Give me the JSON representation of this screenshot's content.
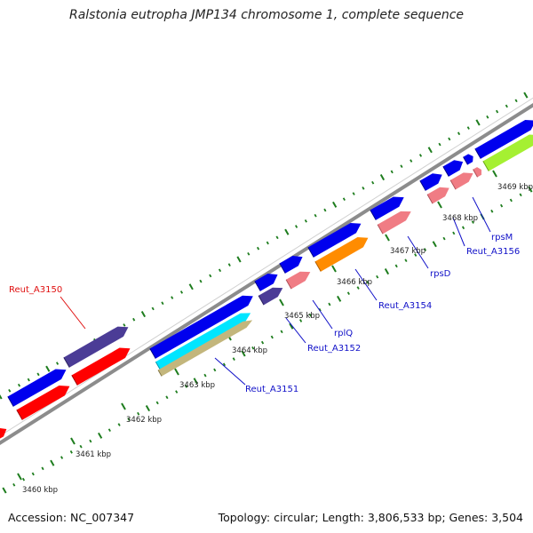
{
  "title": "Ralstonia eutropha JMP134 chromosome 1, complete sequence",
  "footer": {
    "accession": "Accession: NC_007347",
    "topology": "Topology: circular; Length: 3,806,533 bp; Genes: 3,504"
  },
  "colors": {
    "backbone": "#8c8c8c",
    "tick": "#1e7d1e",
    "minus_tick": "#1e7d1e",
    "label_blue": "#1010c8",
    "label_red": "#e01010"
  },
  "kbp_labels": [
    "3460 kbp",
    "3461 kbp",
    "3462 kbp",
    "3463 kbp",
    "3464 kbp",
    "3465 kbp",
    "3466 kbp",
    "3467 kbp",
    "3468 kbp",
    "3469 kbp"
  ],
  "gene_labels": [
    {
      "text": "Reut_A3150",
      "color": "#e01010"
    },
    {
      "text": "Reut_A3151",
      "color": "#1010c8"
    },
    {
      "text": "Reut_A3152",
      "color": "#1010c8"
    },
    {
      "text": "rplQ",
      "color": "#1010c8"
    },
    {
      "text": "Reut_A3154",
      "color": "#1010c8"
    },
    {
      "text": "rpsD",
      "color": "#1010c8"
    },
    {
      "text": "Reut_A3156",
      "color": "#1010c8"
    },
    {
      "text": "rpsM",
      "color": "#1010c8"
    }
  ],
  "features": [
    {
      "kind": "CDS-strand",
      "color": "#0000ee",
      "dark": "#00008a"
    },
    {
      "kind": "gene",
      "color": "#ff0000",
      "dark": "#a00000"
    },
    {
      "kind": "gene-dark",
      "color": "#4b3c96",
      "dark": "#2a2060"
    },
    {
      "kind": "cyan",
      "color": "#00e5ff",
      "dark": "#009cb0"
    },
    {
      "kind": "khaki",
      "color": "#c3b67c",
      "dark": "#857a4a"
    },
    {
      "kind": "pink",
      "color": "#f07c84",
      "dark": "#b0525a"
    },
    {
      "kind": "orange",
      "color": "#ff8c00",
      "dark": "#b05e00"
    },
    {
      "kind": "lime",
      "color": "#a5f032",
      "dark": "#6aa816"
    }
  ]
}
